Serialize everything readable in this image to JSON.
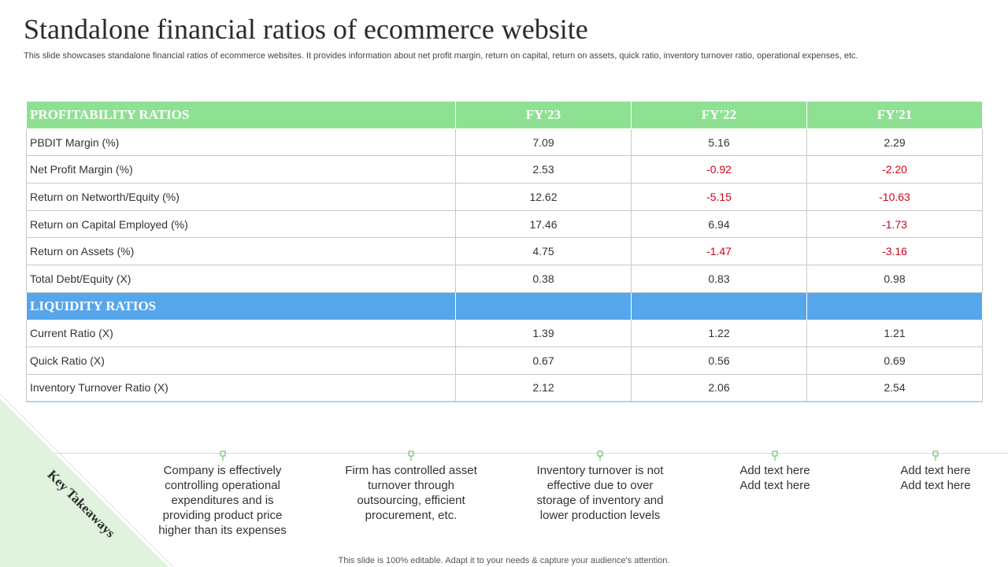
{
  "header": {
    "title": "Standalone financial ratios of ecommerce website",
    "subtitle": "This slide showcases standalone financial ratios of ecommerce websites. It provides information about  net profit margin, return on capital, return on assets, quick ratio, inventory turnover ratio, operational expenses, etc."
  },
  "table": {
    "columns": [
      "FY'23",
      "FY'22",
      "FY'21"
    ],
    "profitability": {
      "heading": "PROFITABILITY RATIOS",
      "rows": [
        {
          "label": "PBDIT Margin (%)",
          "values": [
            "7.09",
            "5.16",
            "2.29"
          ]
        },
        {
          "label": "Net Profit Margin (%)",
          "values": [
            "2.53",
            "-0.92",
            "-2.20"
          ]
        },
        {
          "label": "Return on Networth/Equity (%)",
          "values": [
            "12.62",
            "-5.15",
            "-10.63"
          ]
        },
        {
          "label": "Return on Capital Employed (%)",
          "values": [
            "17.46",
            "6.94",
            "-1.73"
          ]
        },
        {
          "label": "Return on Assets (%)",
          "values": [
            "4.75",
            "-1.47",
            "-3.16"
          ]
        },
        {
          "label": "Total Debt/Equity (X)",
          "values": [
            "0.38",
            "0.83",
            "0.98"
          ]
        }
      ]
    },
    "liquidity": {
      "heading": "LIQUIDITY RATIOS",
      "rows": [
        {
          "label": "Current Ratio (X)",
          "values": [
            "1.39",
            "1.22",
            "1.21"
          ]
        },
        {
          "label": "Quick Ratio (X)",
          "values": [
            "0.67",
            "0.56",
            "0.69"
          ]
        },
        {
          "label": "Inventory  Turnover Ratio (X)",
          "values": [
            "2.12",
            "2.06",
            "2.54"
          ]
        }
      ]
    }
  },
  "key_takeaways": {
    "label": "Key Takeaways",
    "items": [
      "Company is effectively controlling operational expenditures and is providing product price higher than its expenses",
      "Firm has controlled asset turnover through outsourcing, efficient procurement, etc.",
      "Inventory  turnover  is not effective due to over storage of inventory  and lower production levels",
      "Add text here Add text here",
      "Add text here Add text here"
    ]
  },
  "footer": "This slide is 100% editable. Adapt it to your needs & capture your audience's attention.",
  "colors": {
    "header_green": "#8ee192",
    "header_blue": "#55a6ea",
    "negative": "#d0021b",
    "accent_light_green": "#dff3dd"
  },
  "icons": {
    "pin": "pin-icon"
  }
}
